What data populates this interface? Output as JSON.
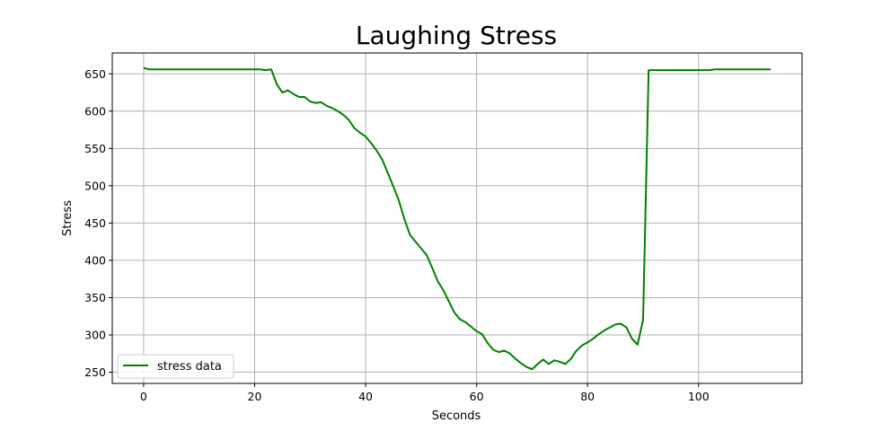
{
  "chart_data": {
    "type": "line",
    "title": "Laughing Stress",
    "xlabel": "Seconds",
    "ylabel": "Stress",
    "xlim": [
      -5.65,
      118.65
    ],
    "ylim": [
      235,
      678
    ],
    "xticks": [
      0,
      20,
      40,
      60,
      80,
      100
    ],
    "yticks": [
      250,
      300,
      350,
      400,
      450,
      500,
      550,
      600,
      650
    ],
    "grid": true,
    "legend": {
      "placement": "lower-left"
    },
    "series": [
      {
        "name": "stress data",
        "color": "#008000",
        "x": [
          0,
          1,
          2,
          3,
          4,
          5,
          6,
          7,
          8,
          9,
          10,
          11,
          12,
          13,
          14,
          15,
          16,
          17,
          18,
          19,
          20,
          21,
          22,
          23,
          24,
          25,
          26,
          27,
          28,
          29,
          30,
          31,
          32,
          33,
          34,
          35,
          36,
          37,
          38,
          39,
          40,
          41,
          42,
          43,
          44,
          45,
          46,
          47,
          48,
          49,
          50,
          51,
          52,
          53,
          54,
          55,
          56,
          57,
          58,
          59,
          60,
          61,
          62,
          63,
          64,
          65,
          66,
          67,
          68,
          69,
          70,
          71,
          72,
          73,
          74,
          75,
          76,
          77,
          78,
          79,
          80,
          81,
          82,
          83,
          84,
          85,
          86,
          87,
          88,
          89,
          90,
          91,
          92,
          93,
          94,
          95,
          96,
          97,
          98,
          99,
          100,
          101,
          102,
          103,
          104,
          105,
          106,
          107,
          108,
          109,
          110,
          111,
          112,
          113
        ],
        "y": [
          658,
          656,
          656,
          656,
          656,
          656,
          656,
          656,
          656,
          656,
          656,
          656,
          656,
          656,
          656,
          656,
          656,
          656,
          656,
          656,
          656,
          656,
          655,
          656,
          636,
          625,
          628,
          623,
          619,
          619,
          613,
          611,
          612,
          607,
          604,
          600,
          595,
          588,
          577,
          571,
          566,
          557,
          547,
          535,
          517,
          499,
          480,
          455,
          434,
          425,
          416,
          407,
          390,
          372,
          360,
          345,
          330,
          321,
          317,
          311,
          305,
          301,
          289,
          280,
          277,
          279,
          275,
          268,
          262,
          257,
          254,
          261,
          267,
          261,
          266,
          264,
          261,
          268,
          279,
          286,
          290,
          295,
          301,
          306,
          310,
          314,
          315,
          310,
          295,
          287,
          320,
          655,
          655,
          655,
          655,
          655,
          655,
          655,
          655,
          655,
          655,
          655,
          655,
          656,
          656,
          656,
          656,
          656,
          656,
          656,
          656,
          656,
          656,
          656
        ]
      }
    ]
  }
}
